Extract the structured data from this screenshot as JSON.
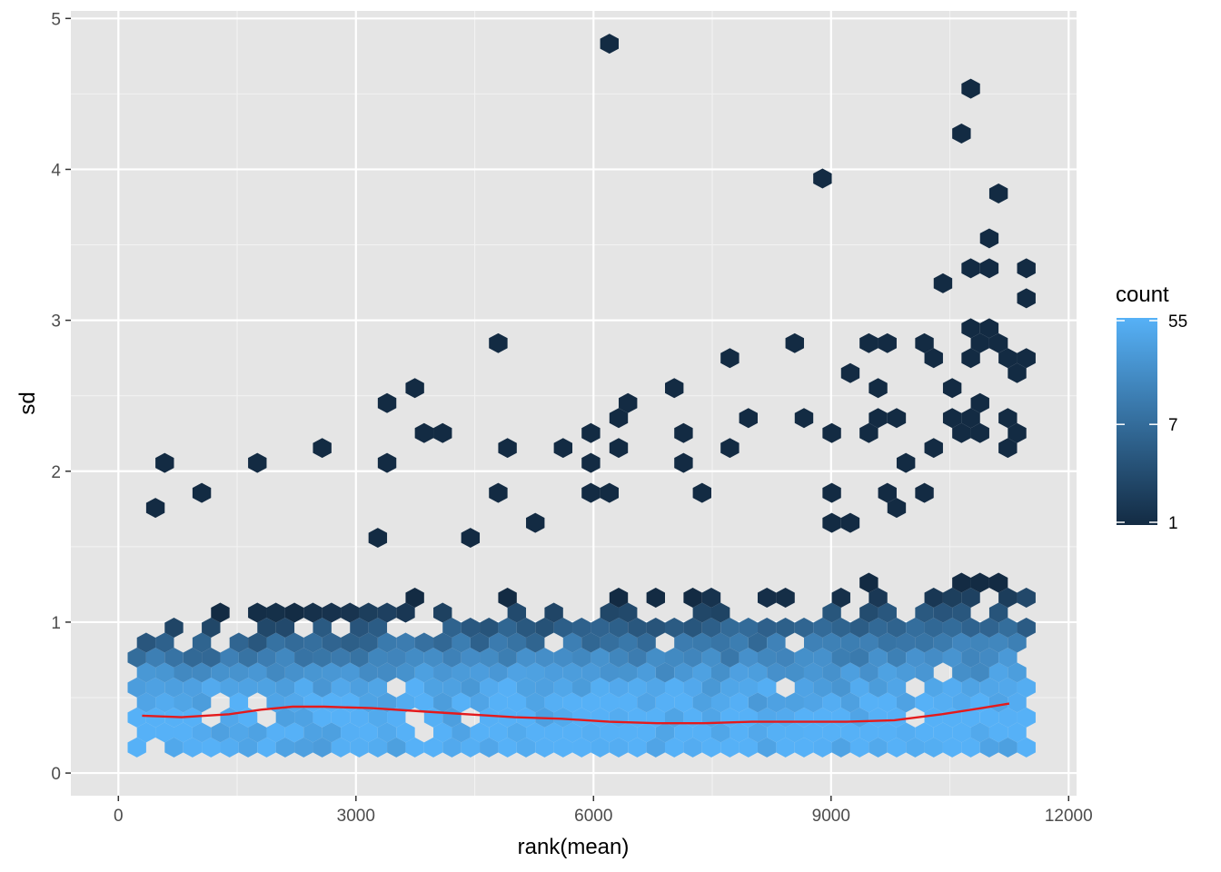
{
  "chart_data": {
    "type": "hexbin",
    "xlabel": "rank(mean)",
    "ylabel": "sd",
    "xlim": [
      -600,
      12100
    ],
    "ylim": [
      -0.15,
      5.05
    ],
    "x_ticks": [
      0,
      3000,
      6000,
      9000,
      12000
    ],
    "x_tick_labels": [
      "0",
      "3000",
      "6000",
      "9000",
      "12000"
    ],
    "y_ticks": [
      0,
      1,
      2,
      3,
      4,
      5
    ],
    "y_tick_labels": [
      "0",
      "1",
      "2",
      "3",
      "4",
      "5"
    ],
    "grid": true,
    "panel_background": "#e5e5e5",
    "legend": {
      "title": "count",
      "position": "right",
      "breaks": [
        55,
        7,
        1
      ],
      "break_labels": [
        "55",
        "7",
        "1"
      ],
      "low_color": "#132b43",
      "high_color": "#56b1f7",
      "scale": "log"
    },
    "density": {
      "x_range": [
        150,
        11550
      ],
      "core_band": [
        0.15,
        0.55
      ],
      "core_peak_count": 55
    },
    "outliers": [
      {
        "x": 6230,
        "y": 4.8
      },
      {
        "x": 10730,
        "y": 4.55
      },
      {
        "x": 10730,
        "y": 4.22
      },
      {
        "x": 9000,
        "y": 3.97
      },
      {
        "x": 11070,
        "y": 3.8
      },
      {
        "x": 10960,
        "y": 3.55
      },
      {
        "x": 10730,
        "y": 3.38
      },
      {
        "x": 10960,
        "y": 3.38
      },
      {
        "x": 11530,
        "y": 3.3
      },
      {
        "x": 11420,
        "y": 3.3
      },
      {
        "x": 10500,
        "y": 3.22
      },
      {
        "x": 11420,
        "y": 3.14
      },
      {
        "x": 10850,
        "y": 2.97
      },
      {
        "x": 11070,
        "y": 2.97
      },
      {
        "x": 10270,
        "y": 2.88
      },
      {
        "x": 9800,
        "y": 2.88
      },
      {
        "x": 4700,
        "y": 2.88
      },
      {
        "x": 11190,
        "y": 2.88
      },
      {
        "x": 10850,
        "y": 2.81
      },
      {
        "x": 8560,
        "y": 2.81
      },
      {
        "x": 9440,
        "y": 2.81
      },
      {
        "x": 10270,
        "y": 2.72
      },
      {
        "x": 10730,
        "y": 2.72
      },
      {
        "x": 11190,
        "y": 2.72
      },
      {
        "x": 11420,
        "y": 2.72
      },
      {
        "x": 7730,
        "y": 2.72
      },
      {
        "x": 9210,
        "y": 2.64
      },
      {
        "x": 11420,
        "y": 2.64
      },
      {
        "x": 7040,
        "y": 2.56
      },
      {
        "x": 3830,
        "y": 2.56
      },
      {
        "x": 9560,
        "y": 2.56
      },
      {
        "x": 10500,
        "y": 2.56
      },
      {
        "x": 6400,
        "y": 2.47
      },
      {
        "x": 3480,
        "y": 2.47
      },
      {
        "x": 10850,
        "y": 2.47
      },
      {
        "x": 6290,
        "y": 2.39
      },
      {
        "x": 7960,
        "y": 2.39
      },
      {
        "x": 8680,
        "y": 2.39
      },
      {
        "x": 9560,
        "y": 2.39
      },
      {
        "x": 11190,
        "y": 2.39
      },
      {
        "x": 9910,
        "y": 2.31
      },
      {
        "x": 10620,
        "y": 2.31
      },
      {
        "x": 10850,
        "y": 2.31
      },
      {
        "x": 6070,
        "y": 2.23
      },
      {
        "x": 3830,
        "y": 2.23
      },
      {
        "x": 4050,
        "y": 2.23
      },
      {
        "x": 7040,
        "y": 2.23
      },
      {
        "x": 9000,
        "y": 2.23
      },
      {
        "x": 9440,
        "y": 2.23
      },
      {
        "x": 9560,
        "y": 2.23
      },
      {
        "x": 10730,
        "y": 2.23
      },
      {
        "x": 10960,
        "y": 2.23
      },
      {
        "x": 11300,
        "y": 2.23
      },
      {
        "x": 2600,
        "y": 2.15
      },
      {
        "x": 4810,
        "y": 2.15
      },
      {
        "x": 5550,
        "y": 2.15
      },
      {
        "x": 6400,
        "y": 2.15
      },
      {
        "x": 7730,
        "y": 2.15
      },
      {
        "x": 10390,
        "y": 2.15
      },
      {
        "x": 11300,
        "y": 2.15
      },
      {
        "x": 580,
        "y": 2.07
      },
      {
        "x": 1730,
        "y": 2.07
      },
      {
        "x": 3360,
        "y": 2.07
      },
      {
        "x": 6070,
        "y": 2.07
      },
      {
        "x": 7200,
        "y": 2.07
      },
      {
        "x": 10040,
        "y": 2.07
      },
      {
        "x": 10270,
        "y": 1.9
      },
      {
        "x": 9800,
        "y": 1.9
      },
      {
        "x": 8910,
        "y": 1.9
      },
      {
        "x": 1000,
        "y": 1.9
      },
      {
        "x": 4700,
        "y": 1.82
      },
      {
        "x": 6070,
        "y": 1.82
      },
      {
        "x": 6290,
        "y": 1.82
      },
      {
        "x": 7380,
        "y": 1.82
      },
      {
        "x": 9910,
        "y": 1.74
      },
      {
        "x": 580,
        "y": 1.74
      },
      {
        "x": 5180,
        "y": 1.65
      },
      {
        "x": 9000,
        "y": 1.65
      },
      {
        "x": 9210,
        "y": 1.65
      },
      {
        "x": 4500,
        "y": 1.57
      },
      {
        "x": 3360,
        "y": 1.57
      }
    ],
    "trend_line": [
      {
        "x": 300,
        "y": 0.38
      },
      {
        "x": 800,
        "y": 0.37
      },
      {
        "x": 1400,
        "y": 0.39
      },
      {
        "x": 1800,
        "y": 0.42
      },
      {
        "x": 2200,
        "y": 0.44
      },
      {
        "x": 2600,
        "y": 0.44
      },
      {
        "x": 3200,
        "y": 0.43
      },
      {
        "x": 3800,
        "y": 0.41
      },
      {
        "x": 4400,
        "y": 0.39
      },
      {
        "x": 5000,
        "y": 0.37
      },
      {
        "x": 5600,
        "y": 0.36
      },
      {
        "x": 6200,
        "y": 0.34
      },
      {
        "x": 6800,
        "y": 0.33
      },
      {
        "x": 7400,
        "y": 0.33
      },
      {
        "x": 8000,
        "y": 0.34
      },
      {
        "x": 8600,
        "y": 0.34
      },
      {
        "x": 9200,
        "y": 0.34
      },
      {
        "x": 9800,
        "y": 0.35
      },
      {
        "x": 10400,
        "y": 0.39
      },
      {
        "x": 10900,
        "y": 0.43
      },
      {
        "x": 11250,
        "y": 0.46
      }
    ],
    "trend_color": "#e41a1c"
  }
}
